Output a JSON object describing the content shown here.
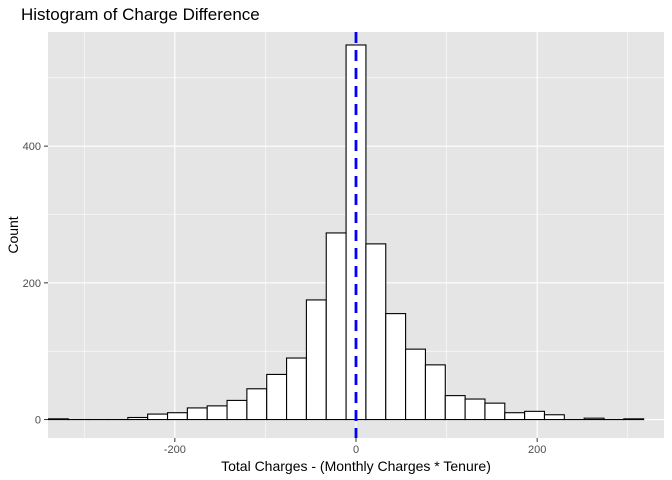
{
  "chart_data": {
    "type": "bar",
    "title": "Histogram of Charge Difference",
    "xlabel": "Total Charges - (Monthly Charges * Tenure)",
    "ylabel": "Count",
    "xlim": [
      -340,
      340
    ],
    "ylim": [
      -27,
      567
    ],
    "x_ticks": [
      -200,
      0,
      200
    ],
    "x_tick_labels": [
      "-200",
      "0",
      "200"
    ],
    "y_ticks": [
      0,
      200,
      400
    ],
    "y_tick_labels": [
      "0",
      "200",
      "400"
    ],
    "grid": true,
    "bin_width": 21.9,
    "bins": [
      {
        "x": -328.5,
        "count": 1
      },
      {
        "x": -306.6,
        "count": 0
      },
      {
        "x": -284.7,
        "count": 0
      },
      {
        "x": -262.8,
        "count": 0
      },
      {
        "x": -240.9,
        "count": 3
      },
      {
        "x": -219.0,
        "count": 8
      },
      {
        "x": -197.1,
        "count": 10
      },
      {
        "x": -175.2,
        "count": 17
      },
      {
        "x": -153.3,
        "count": 20
      },
      {
        "x": -131.4,
        "count": 28
      },
      {
        "x": -109.5,
        "count": 45
      },
      {
        "x": -87.6,
        "count": 66
      },
      {
        "x": -65.7,
        "count": 90
      },
      {
        "x": -43.8,
        "count": 175
      },
      {
        "x": -21.9,
        "count": 273
      },
      {
        "x": 0.0,
        "count": 548
      },
      {
        "x": 21.9,
        "count": 257
      },
      {
        "x": 43.8,
        "count": 155
      },
      {
        "x": 65.7,
        "count": 103
      },
      {
        "x": 87.6,
        "count": 80
      },
      {
        "x": 109.5,
        "count": 35
      },
      {
        "x": 131.4,
        "count": 30
      },
      {
        "x": 153.3,
        "count": 24
      },
      {
        "x": 175.2,
        "count": 10
      },
      {
        "x": 197.1,
        "count": 12
      },
      {
        "x": 219.0,
        "count": 7
      },
      {
        "x": 240.9,
        "count": 0
      },
      {
        "x": 262.8,
        "count": 2
      },
      {
        "x": 284.7,
        "count": 0
      },
      {
        "x": 306.6,
        "count": 1
      }
    ],
    "reference_line": {
      "x": 0,
      "style": "dashed",
      "color": "#0000ff"
    },
    "colors": {
      "panel": "#e5e5e5",
      "grid_major": "#ffffff",
      "bar_fill": "#ffffff",
      "bar_stroke": "#000000"
    }
  }
}
